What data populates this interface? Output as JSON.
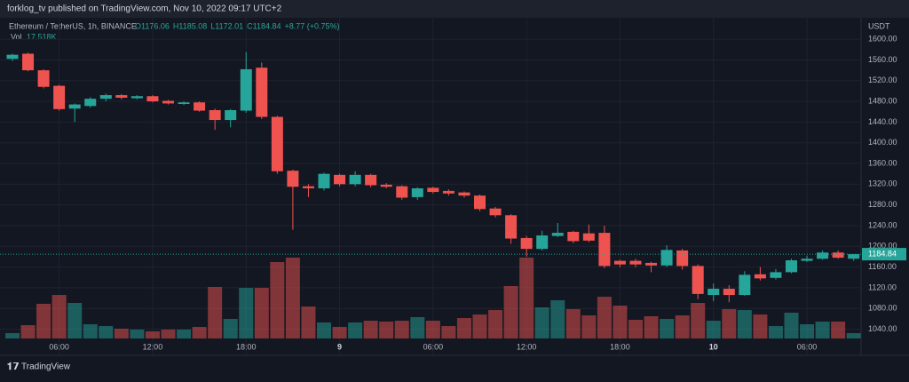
{
  "header": {
    "publisher": "forklog_tv published on TradingView.com, Nov 10, 2022 09:17 UTC+2"
  },
  "chart_data": {
    "type": "candlestick",
    "symbol": "Ethereum / TetherUS, 1h, BINANCE",
    "ohlc_text": [
      "O1176.06",
      "H1185.08",
      "L1172.01",
      "C1184.84",
      "+8.77 (+0.75%)"
    ],
    "volume_title": "Vol",
    "volume_text": "17.518K",
    "y_axis_label": "USDT",
    "last_price_label": "1184.84",
    "up_color": "#26a69a",
    "down_color": "#ef5350",
    "grid": true,
    "categories": [
      null,
      null,
      null,
      "06:00",
      null,
      null,
      null,
      null,
      null,
      "12:00",
      null,
      null,
      null,
      null,
      null,
      "18:00",
      null,
      null,
      null,
      null,
      null,
      "9",
      null,
      null,
      null,
      null,
      null,
      "06:00",
      null,
      null,
      null,
      null,
      null,
      "12:00",
      null,
      null,
      null,
      null,
      null,
      "18:00",
      null,
      null,
      null,
      null,
      null,
      "10",
      null,
      null,
      null,
      null,
      null,
      "06:00",
      null,
      null,
      null
    ],
    "open": [
      1562,
      1572,
      1540,
      1510,
      1466,
      1471,
      1485,
      1492,
      1486,
      1490,
      1481,
      1475,
      1478,
      1463,
      1444,
      1462,
      1545,
      1450,
      1346,
      1316,
      1312,
      1338,
      1320,
      1338,
      1319,
      1316,
      1295,
      1313,
      1307,
      1304,
      1298,
      1273,
      1260,
      1216,
      1195,
      1220,
      1228,
      1225,
      1226,
      1172,
      1172,
      1168,
      1163,
      1192,
      1162,
      1106,
      1118,
      1106,
      1146,
      1139,
      1150,
      1172,
      1176,
      1188,
      1176.06
    ],
    "high": [
      1572,
      1574,
      1542,
      1512,
      1476,
      1488,
      1495,
      1494,
      1492,
      1492,
      1483,
      1480,
      1480,
      1466,
      1465,
      1575,
      1555,
      1452,
      1348,
      1320,
      1342,
      1340,
      1345,
      1340,
      1322,
      1318,
      1314,
      1315,
      1310,
      1306,
      1300,
      1276,
      1262,
      1220,
      1230,
      1245,
      1230,
      1242,
      1240,
      1174,
      1176,
      1170,
      1202,
      1195,
      1165,
      1128,
      1125,
      1152,
      1160,
      1156,
      1176,
      1182,
      1192,
      1192,
      1185.08
    ],
    "low": [
      1558,
      1538,
      1505,
      1462,
      1440,
      1468,
      1480,
      1484,
      1484,
      1478,
      1474,
      1473,
      1460,
      1425,
      1430,
      1458,
      1446,
      1340,
      1232,
      1295,
      1308,
      1316,
      1316,
      1314,
      1312,
      1290,
      1290,
      1302,
      1298,
      1294,
      1268,
      1256,
      1205,
      1180,
      1192,
      1218,
      1206,
      1208,
      1158,
      1160,
      1160,
      1150,
      1160,
      1155,
      1098,
      1094,
      1092,
      1104,
      1134,
      1136,
      1148,
      1170,
      1174,
      1176,
      1172.01
    ],
    "close": [
      1570,
      1540,
      1508,
      1465,
      1474,
      1485,
      1492,
      1487,
      1490,
      1480,
      1476,
      1478,
      1462,
      1444,
      1463,
      1542,
      1450,
      1345,
      1315,
      1312,
      1340,
      1320,
      1338,
      1318,
      1315,
      1294,
      1312,
      1305,
      1302,
      1298,
      1272,
      1260,
      1215,
      1195,
      1221,
      1226,
      1210,
      1211,
      1162,
      1165,
      1165,
      1163,
      1193,
      1162,
      1108,
      1118,
      1106,
      1145,
      1138,
      1150,
      1173,
      1176,
      1188,
      1178,
      1184.84
    ],
    "volume": [
      17.5,
      43.8,
      113.9,
      143,
      116.8,
      46.7,
      40.9,
      32.1,
      29.2,
      23.4,
      29.2,
      29.2,
      38,
      169.4,
      64.2,
      166.4,
      166.4,
      251.1,
      265.7,
      105.1,
      52.6,
      38,
      52.6,
      58.4,
      55.5,
      58.4,
      70.1,
      58.4,
      40.9,
      67.2,
      78.8,
      93.4,
      172.3,
      265.7,
      102.2,
      125.6,
      96.4,
      75.9,
      137.2,
      108,
      61.3,
      73,
      64.2,
      75.9,
      116.8,
      58.4,
      96.4,
      93.4,
      78.8,
      40.9,
      84.7,
      46.7,
      55.5,
      55.5,
      17.518
    ],
    "ylim": [
      1022,
      1638
    ],
    "yticks": [
      {
        "value": 1040,
        "label": "1040.00"
      },
      {
        "value": 1080,
        "label": "1080.00"
      },
      {
        "value": 1120,
        "label": "1120.00"
      },
      {
        "value": 1160,
        "label": "1160.00"
      },
      {
        "value": 1200,
        "label": "1200.00"
      },
      {
        "value": 1240,
        "label": "1240.00"
      },
      {
        "value": 1280,
        "label": "1280.00"
      },
      {
        "value": 1320,
        "label": "1320.00"
      },
      {
        "value": 1360,
        "label": "1360.00"
      },
      {
        "value": 1400,
        "label": "1400.00"
      },
      {
        "value": 1440,
        "label": "1440.00"
      },
      {
        "value": 1480,
        "label": "1480.00"
      },
      {
        "value": 1520,
        "label": "1520.00"
      },
      {
        "value": 1560,
        "label": "1560.00"
      },
      {
        "value": 1600,
        "label": "1600.00"
      }
    ]
  },
  "footer": {
    "brand": "TradingView"
  }
}
